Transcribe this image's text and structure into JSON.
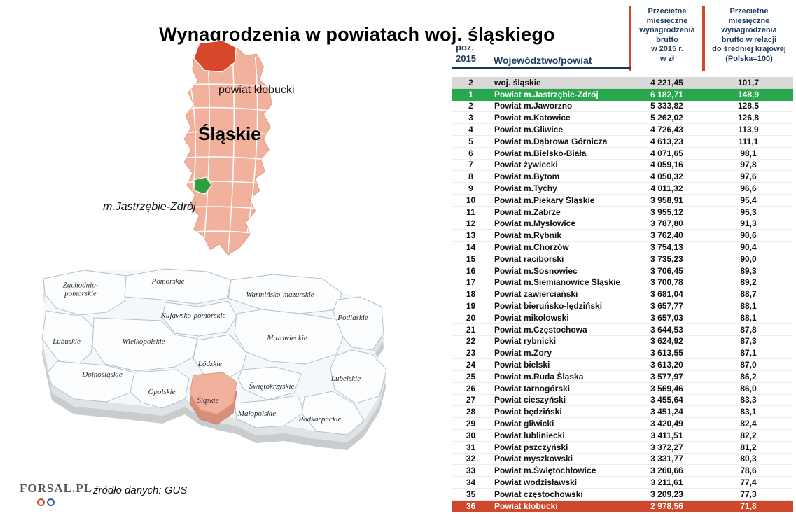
{
  "title": "Wynagrodzenia w powiatach woj. śląskiego",
  "colors": {
    "highlight_green": "#28a84c",
    "highlight_red": "#d0482c",
    "summary_gray": "#d9d9d9",
    "map_salmon": "#f1b19d",
    "header_navy": "#1d3a5f"
  },
  "silesia_map": {
    "label_klobucki": "powiat kłobucki",
    "label_region": "Śląskie",
    "label_city": "m.Jastrzębie-Zdrój"
  },
  "poland_labels": [
    "Zachodnio-\npomorskie",
    "Pomorskie",
    "Warmińsko-mazurskie",
    "Podlaskie",
    "Kujawsko-pomorskie",
    "Wielkopolskie",
    "Mazowieckie",
    "Lubuskie",
    "Łódzkie",
    "Dolnośląskie",
    "Opolskie",
    "Śląskie",
    "Świętokrzyskie",
    "Lubelskie",
    "Małopolskie",
    "Podkarpackie"
  ],
  "table_header": {
    "pos": "poz.\n2015",
    "region": "Województwo/powiat",
    "wage": "Przeciętne\nmiesięczne\nwynagrodzenia\nbrutto\nw 2015 r.\nw zł",
    "relative": "Przeciętne\nmiesięczne\nwynagrodzenia\nbrutto w relacji\ndo średniej krajowej\n(Polska=100)"
  },
  "chart_data": {
    "type": "table",
    "title": "Wynagrodzenia w powiatach woj. śląskiego",
    "columns": [
      "poz. 2015",
      "Województwo/powiat",
      "Przeciętne miesięczne wynagrodzenia brutto w 2015 r. w zł",
      "Przeciętne miesięczne wynagrodzenia brutto w relacji do średniej krajowej (Polska=100)"
    ],
    "rows": [
      {
        "pos": "2",
        "name": "woj. śląskie",
        "wage": "4 221,45",
        "relative": "101,7",
        "highlight": "gray"
      },
      {
        "pos": "1",
        "name": "Powiat m.Jastrzębie-Zdrój",
        "wage": "6 182,71",
        "relative": "148,9",
        "highlight": "green"
      },
      {
        "pos": "2",
        "name": "Powiat m.Jaworzno",
        "wage": "5 333,82",
        "relative": "128,5",
        "highlight": ""
      },
      {
        "pos": "3",
        "name": "Powiat m.Katowice",
        "wage": "5 262,02",
        "relative": "126,8",
        "highlight": ""
      },
      {
        "pos": "4",
        "name": "Powiat m.Gliwice",
        "wage": "4 726,43",
        "relative": "113,9",
        "highlight": ""
      },
      {
        "pos": "5",
        "name": "Powiat m.Dąbrowa Górnicza",
        "wage": "4 613,23",
        "relative": "111,1",
        "highlight": ""
      },
      {
        "pos": "6",
        "name": "Powiat m.Bielsko-Biała",
        "wage": "4 071,65",
        "relative": "98,1",
        "highlight": ""
      },
      {
        "pos": "7",
        "name": "Powiat żywiecki",
        "wage": "4 059,16",
        "relative": "97,8",
        "highlight": ""
      },
      {
        "pos": "8",
        "name": "Powiat m.Bytom",
        "wage": "4 050,32",
        "relative": "97,6",
        "highlight": ""
      },
      {
        "pos": "9",
        "name": "Powiat m.Tychy",
        "wage": "4 011,32",
        "relative": "96,6",
        "highlight": ""
      },
      {
        "pos": "10",
        "name": "Powiat m.Piekary Śląskie",
        "wage": "3 958,91",
        "relative": "95,4",
        "highlight": ""
      },
      {
        "pos": "11",
        "name": "Powiat m.Zabrze",
        "wage": "3 955,12",
        "relative": "95,3",
        "highlight": ""
      },
      {
        "pos": "12",
        "name": "Powiat m.Mysłowice",
        "wage": "3 787,80",
        "relative": "91,3",
        "highlight": ""
      },
      {
        "pos": "13",
        "name": "Powiat m.Rybnik",
        "wage": "3 762,40",
        "relative": "90,6",
        "highlight": ""
      },
      {
        "pos": "14",
        "name": "Powiat m.Chorzów",
        "wage": "3 754,13",
        "relative": "90,4",
        "highlight": ""
      },
      {
        "pos": "15",
        "name": "Powiat raciborski",
        "wage": "3 735,23",
        "relative": "90,0",
        "highlight": ""
      },
      {
        "pos": "16",
        "name": "Powiat m.Sosnowiec",
        "wage": "3 706,45",
        "relative": "89,3",
        "highlight": ""
      },
      {
        "pos": "17",
        "name": "Powiat m.Siemianowice Śląskie",
        "wage": "3 700,78",
        "relative": "89,2",
        "highlight": ""
      },
      {
        "pos": "18",
        "name": "Powiat zawierciański",
        "wage": "3 681,04",
        "relative": "88,7",
        "highlight": ""
      },
      {
        "pos": "19",
        "name": "Powiat bieruńsko-lędziński",
        "wage": "3 657,77",
        "relative": "88,1",
        "highlight": ""
      },
      {
        "pos": "20",
        "name": "Powiat mikołowski",
        "wage": "3 657,03",
        "relative": "88,1",
        "highlight": ""
      },
      {
        "pos": "21",
        "name": "Powiat m.Częstochowa",
        "wage": "3 644,53",
        "relative": "87,8",
        "highlight": ""
      },
      {
        "pos": "22",
        "name": "Powiat rybnicki",
        "wage": "3 624,92",
        "relative": "87,3",
        "highlight": ""
      },
      {
        "pos": "23",
        "name": "Powiat m.Żory",
        "wage": "3 613,55",
        "relative": "87,1",
        "highlight": ""
      },
      {
        "pos": "24",
        "name": "Powiat bielski",
        "wage": "3 613,20",
        "relative": "87,0",
        "highlight": ""
      },
      {
        "pos": "25",
        "name": "Powiat m.Ruda Śląska",
        "wage": "3 577,97",
        "relative": "86,2",
        "highlight": ""
      },
      {
        "pos": "26",
        "name": "Powiat tarnogórski",
        "wage": "3 569,46",
        "relative": "86,0",
        "highlight": ""
      },
      {
        "pos": "27",
        "name": "Powiat cieszyński",
        "wage": "3 455,64",
        "relative": "83,3",
        "highlight": ""
      },
      {
        "pos": "28",
        "name": "Powiat będziński",
        "wage": "3 451,24",
        "relative": "83,1",
        "highlight": ""
      },
      {
        "pos": "29",
        "name": "Powiat gliwicki",
        "wage": "3 420,49",
        "relative": "82,4",
        "highlight": ""
      },
      {
        "pos": "30",
        "name": "Powiat lubliniecki",
        "wage": "3 411,51",
        "relative": "82,2",
        "highlight": ""
      },
      {
        "pos": "31",
        "name": "Powiat pszczyński",
        "wage": "3 372,27",
        "relative": "81,2",
        "highlight": ""
      },
      {
        "pos": "32",
        "name": "Powiat myszkowski",
        "wage": "3 331,77",
        "relative": "80,3",
        "highlight": ""
      },
      {
        "pos": "33",
        "name": "Powiat m.Świętochłowice",
        "wage": "3 260,66",
        "relative": "78,6",
        "highlight": ""
      },
      {
        "pos": "34",
        "name": "Powiat wodzisławski",
        "wage": "3 211,61",
        "relative": "77,4",
        "highlight": ""
      },
      {
        "pos": "35",
        "name": "Powiat częstochowski",
        "wage": "3 209,23",
        "relative": "77,3",
        "highlight": ""
      },
      {
        "pos": "36",
        "name": "Powiat kłobucki",
        "wage": "2 978,56",
        "relative": "71,8",
        "highlight": "red"
      }
    ]
  },
  "footer": {
    "logo": "FORSAL.PL",
    "source": "źródło danych: GUS"
  }
}
